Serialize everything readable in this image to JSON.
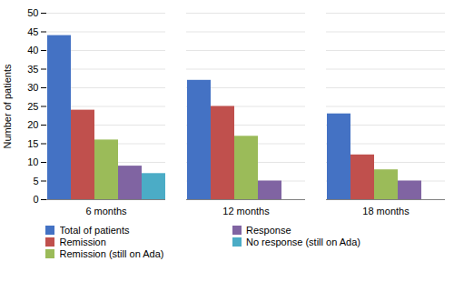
{
  "chart_data": {
    "type": "bar",
    "categories": [
      "6 months",
      "12 months",
      "18 months"
    ],
    "series": [
      {
        "name": "Total of patients",
        "color": "#4472C4",
        "values": [
          44,
          32,
          23
        ]
      },
      {
        "name": "Remission",
        "color": "#C0504D",
        "values": [
          24,
          25,
          12
        ]
      },
      {
        "name": "Remission (still on Ada)",
        "color": "#9BBB59",
        "values": [
          16,
          17,
          8
        ]
      },
      {
        "name": "Response",
        "color": "#8064A2",
        "values": [
          9,
          5,
          5
        ]
      },
      {
        "name": "No response (still on Ada)",
        "color": "#4BACC6",
        "values": [
          7,
          null,
          null
        ]
      }
    ],
    "ylabel": "Number of patients",
    "ylim": [
      0,
      50
    ],
    "yticks": [
      0,
      5,
      10,
      15,
      20,
      25,
      30,
      35,
      40,
      45,
      50
    ],
    "grid": true,
    "legend": "bottom"
  }
}
